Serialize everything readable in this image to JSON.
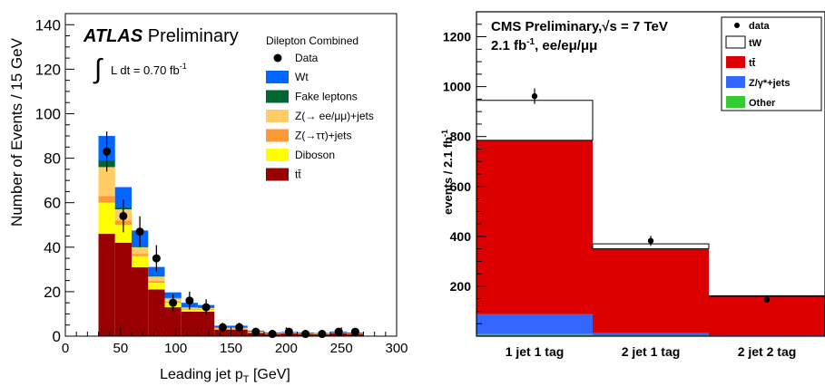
{
  "chart_data": [
    {
      "type": "stacked-bar",
      "title": "",
      "brand": "ATLAS",
      "brand_suffix": "Preliminary",
      "lumi_text": "L dt = 0.70 fb",
      "lumi_sup": "-1",
      "legend_title": "Dilepton Combined",
      "legend_placement": "top-right",
      "xlabel": "Leading jet p",
      "xlabel_sub": "T",
      "xlabel_unit": "[GeV]",
      "ylabel": "Number of Events / 15 GeV",
      "xlim": [
        0,
        300
      ],
      "ylim": [
        0,
        145
      ],
      "xticks": [
        0,
        50,
        100,
        150,
        200,
        250,
        300
      ],
      "yticks": [
        0,
        20,
        40,
        60,
        80,
        100,
        120,
        140
      ],
      "bin_edges": [
        30,
        45,
        60,
        75,
        90,
        105,
        120,
        135,
        150,
        165,
        180,
        195,
        210,
        225,
        240,
        255,
        270
      ],
      "series": [
        {
          "name": "tt̄",
          "color": "#990000",
          "values": [
            46,
            42,
            31,
            21,
            13,
            11,
            11,
            3,
            3,
            1.5,
            1,
            1.2,
            1,
            0.8,
            1.4,
            1
          ]
        },
        {
          "name": "Diboson",
          "color": "#ffff00",
          "values": [
            14,
            8,
            5,
            3,
            2,
            0.8,
            0.8,
            0.3,
            0.3,
            0.2,
            0.1,
            0.1,
            0.1,
            0.1,
            0.1,
            0.1
          ]
        },
        {
          "name": "Z(→ττ)+jets",
          "color": "#ff9933",
          "values": [
            3,
            2,
            1,
            0.8,
            0.5,
            0.3,
            0.3,
            0.2,
            0.2,
            0.1,
            0.1,
            0.1,
            0.1,
            0.1,
            0.1,
            0.1
          ]
        },
        {
          "name": "Z(→ ee/μμ)+jets",
          "color": "#ffcc66",
          "values": [
            13,
            5,
            3,
            2,
            1.5,
            0.8,
            0.6,
            0.3,
            0.3,
            0.2,
            0.1,
            0.1,
            0.1,
            0.1,
            0.1,
            0.1
          ]
        },
        {
          "name": "Fake leptons",
          "color": "#006633",
          "values": [
            3,
            1,
            0.5,
            0.3,
            0.2,
            0.1,
            0.1,
            0.1,
            0.1,
            0.1,
            0.1,
            0.1,
            0.1,
            0.1,
            0.1,
            0.1
          ]
        },
        {
          "name": "Wt",
          "color": "#0066ff",
          "values": [
            11,
            9,
            7,
            4,
            2.5,
            2,
            1.2,
            0.8,
            0.8,
            0.4,
            0.3,
            0.3,
            0.3,
            0.2,
            0.3,
            0.3
          ]
        }
      ],
      "data": {
        "name": "Data",
        "x": [
          37.5,
          52.5,
          67.5,
          82.5,
          97.5,
          112.5,
          127.5,
          142.5,
          157.5,
          172.5,
          187.5,
          202.5,
          217.5,
          232.5,
          247.5,
          262.5
        ],
        "y": [
          83,
          54,
          47,
          35,
          15,
          16,
          13,
          4,
          4,
          2,
          1,
          2,
          1,
          1,
          2,
          2
        ],
        "err": [
          9,
          7.3,
          6.9,
          5.9,
          3.9,
          4,
          3.6,
          2,
          2,
          1.4,
          1,
          1.4,
          1,
          1,
          1.4,
          1.4
        ]
      }
    },
    {
      "type": "stacked-bar",
      "title": "",
      "header_line1": "CMS Preliminary,",
      "header_sqrt": "√s = 7 TeV",
      "header_line2": "2.1 fb",
      "header_line2_sup": "-1",
      "header_line2_rest": ", ee/eμ/μμ",
      "legend_placement": "top-right",
      "xlabel": "",
      "ylabel": "events / 2.1 fb",
      "ylabel_sup": "-1",
      "ylim": [
        0,
        1300
      ],
      "yticks": [
        200,
        400,
        600,
        800,
        1000,
        1200
      ],
      "categories": [
        "1 jet 1 tag",
        "2 jet 1 tag",
        "2 jet 2 tag"
      ],
      "series": [
        {
          "name": "Other",
          "color": "#33cc33",
          "values": [
            8,
            3,
            1
          ]
        },
        {
          "name": "Z/γ*+jets",
          "color": "#3366ff",
          "values": [
            80,
            10,
            2
          ]
        },
        {
          "name": "tt̄",
          "color": "#dd0000",
          "values": [
            697,
            337,
            157
          ]
        },
        {
          "name": "tW",
          "color": "#ffffff",
          "values": [
            160,
            20,
            2
          ]
        }
      ],
      "data": {
        "name": "data",
        "y": [
          962,
          382,
          146
        ],
        "err": [
          31,
          20,
          12
        ]
      }
    }
  ]
}
